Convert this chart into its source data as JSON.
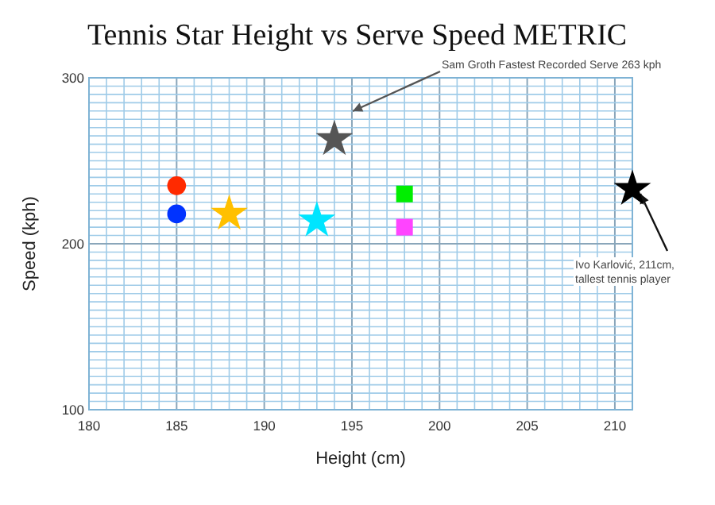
{
  "chart_data": {
    "type": "scatter",
    "title": "Tennis Star Height vs Serve Speed METRIC",
    "xlabel": "Height (cm)",
    "ylabel": "Speed (kph)",
    "xlim": [
      180,
      211
    ],
    "xticks": [
      180,
      {
        "value": 181,
        "label": null
      },
      {
        "value": 182,
        "label": null
      },
      {
        "value": 183,
        "label": null
      },
      {
        "value": 184,
        "label": null
      },
      185,
      {
        "value": 186,
        "label": null
      },
      {
        "value": 187,
        "label": null
      },
      {
        "value": 188,
        "label": null
      },
      {
        "value": 189,
        "label": null
      },
      190,
      {
        "value": 191,
        "label": null
      },
      {
        "value": 192,
        "label": null
      },
      {
        "value": 193,
        "label": null
      },
      {
        "value": 194,
        "label": null
      },
      195,
      {
        "value": 196,
        "label": null
      },
      {
        "value": 197,
        "label": null
      },
      {
        "value": 198,
        "label": null
      },
      {
        "value": 199,
        "label": null
      },
      200,
      {
        "value": 201,
        "label": null
      },
      {
        "value": 202,
        "label": null
      },
      {
        "value": 203,
        "label": null
      },
      {
        "value": 204,
        "label": null
      },
      205,
      {
        "value": 206,
        "label": null
      },
      {
        "value": 207,
        "label": null
      },
      {
        "value": 208,
        "label": null
      },
      {
        "value": 209,
        "label": null
      },
      210,
      {
        "value": 211,
        "label": null
      }
    ],
    "ylim": [
      100,
      300
    ],
    "yticks": [
      100,
      {
        "value": 105,
        "label": null
      },
      {
        "value": 110,
        "label": null
      },
      {
        "value": 115,
        "label": null
      },
      {
        "value": 120,
        "label": null
      },
      {
        "value": 125,
        "label": null
      },
      {
        "value": 130,
        "label": null
      },
      {
        "value": 135,
        "label": null
      },
      {
        "value": 140,
        "label": null
      },
      {
        "value": 145,
        "label": null
      },
      {
        "value": 150,
        "label": null
      },
      {
        "value": 155,
        "label": null
      },
      {
        "value": 160,
        "label": null
      },
      {
        "value": 165,
        "label": null
      },
      {
        "value": 170,
        "label": null
      },
      {
        "value": 175,
        "label": null
      },
      {
        "value": 180,
        "label": null
      },
      {
        "value": 185,
        "label": null
      },
      {
        "value": 190,
        "label": null
      },
      {
        "value": 195,
        "label": null
      },
      200,
      {
        "value": 205,
        "label": null
      },
      {
        "value": 210,
        "label": null
      },
      {
        "value": 215,
        "label": null
      },
      {
        "value": 220,
        "label": null
      },
      {
        "value": 225,
        "label": null
      },
      {
        "value": 230,
        "label": null
      },
      {
        "value": 235,
        "label": null
      },
      {
        "value": 240,
        "label": null
      },
      {
        "value": 245,
        "label": null
      },
      {
        "value": 250,
        "label": null
      },
      {
        "value": 255,
        "label": null
      },
      {
        "value": 260,
        "label": null
      },
      {
        "value": 265,
        "label": null
      },
      {
        "value": 270,
        "label": null
      },
      {
        "value": 275,
        "label": null
      },
      {
        "value": 280,
        "label": null
      },
      {
        "value": 285,
        "label": null
      },
      {
        "value": 290,
        "label": null
      },
      {
        "value": 295,
        "label": null
      },
      300
    ],
    "grid": true,
    "series": [
      {
        "color": "#ff2a00",
        "marker": "circle",
        "x": [
          185
        ],
        "values": [
          235
        ]
      },
      {
        "color": "#0033ff",
        "marker": "circle",
        "x": [
          185
        ],
        "values": [
          218
        ]
      },
      {
        "color": "#ffc000",
        "marker": "star",
        "x": [
          188
        ],
        "values": [
          218
        ]
      },
      {
        "color": "#00e5ff",
        "marker": "star",
        "x": [
          193
        ],
        "values": [
          214
        ]
      },
      {
        "color": "#00ee00",
        "marker": "square",
        "x": [
          198
        ],
        "values": [
          230
        ]
      },
      {
        "color": "#ff44ff",
        "marker": "square",
        "x": [
          198
        ],
        "values": [
          210
        ]
      },
      {
        "color": "#555555",
        "marker": "star",
        "x": [
          194
        ],
        "values": [
          263
        ]
      },
      {
        "color": "#000000",
        "marker": "star",
        "x": [
          211
        ],
        "values": [
          233
        ]
      }
    ],
    "annotations": [
      "Sam Groth Fastest Recorded Serve  263 kph",
      "Ivo Karlović, 211cm, tallest tennis player"
    ]
  }
}
